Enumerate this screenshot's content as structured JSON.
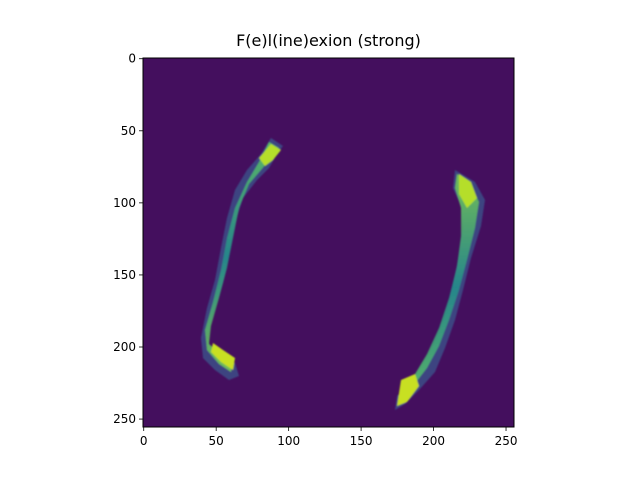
{
  "title": "F(e)l(ine)exion (strong)",
  "image": {
    "type": "heatmap",
    "colormap": "viridis",
    "background_color": "#440f5e",
    "x_range": [
      0,
      256
    ],
    "y_range": [
      0,
      256
    ],
    "x_ticks": [
      "0",
      "50",
      "100",
      "150",
      "200",
      "250"
    ],
    "y_ticks": [
      "0",
      "50",
      "100",
      "150",
      "200",
      "250"
    ],
    "y_inverted": true
  }
}
